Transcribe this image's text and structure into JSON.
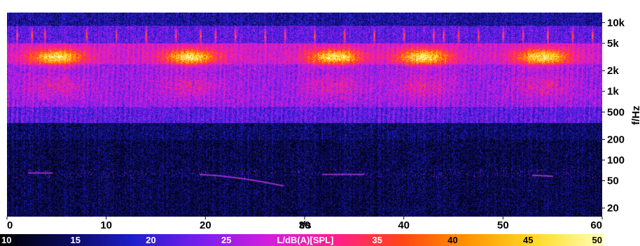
{
  "chart_data": {
    "type": "heatmap",
    "title": "",
    "xlabel": "t/s",
    "ylabel": "f/Hz",
    "colorbar_label": "L/dB(A)[SPL]",
    "xlim": [
      0,
      60
    ],
    "ylim": [
      15,
      14000
    ],
    "y_scale": "log",
    "x_ticks": [
      0,
      10,
      20,
      30,
      40,
      50,
      60
    ],
    "x_tick_labels": [
      "0",
      "10",
      "20",
      "30",
      "40",
      "50",
      "60"
    ],
    "y_ticks": [
      20,
      50,
      100,
      200,
      500,
      1000,
      2000,
      5000,
      10000
    ],
    "y_tick_labels": [
      "20",
      "50",
      "100",
      "200",
      "500",
      "1k",
      "2k",
      "5k",
      "10k"
    ],
    "colorbar_ticks": [
      10,
      15,
      20,
      25,
      35,
      40,
      45,
      50
    ],
    "colorbar_tick_labels": [
      "10",
      "15",
      "20",
      "25",
      "35",
      "40",
      "45",
      "50"
    ],
    "colorbar_range": [
      10,
      50
    ],
    "colormap": [
      "#000000",
      "#0a0a5a",
      "#1e1ecc",
      "#7a1ef0",
      "#d21edc",
      "#ff1e8c",
      "#ff4614",
      "#ff9600",
      "#ffdc28",
      "#ffffbe"
    ],
    "features": {
      "bird_chirp_times": [
        1,
        2.5,
        3.8,
        8,
        11,
        14,
        17,
        19.5,
        21,
        23,
        26,
        28,
        31,
        34,
        37,
        40,
        43,
        44,
        45.5,
        47.5,
        50,
        52,
        54.5,
        57,
        59
      ],
      "song_cluster_times": [
        5,
        18.5,
        33,
        42,
        54
      ]
    }
  }
}
